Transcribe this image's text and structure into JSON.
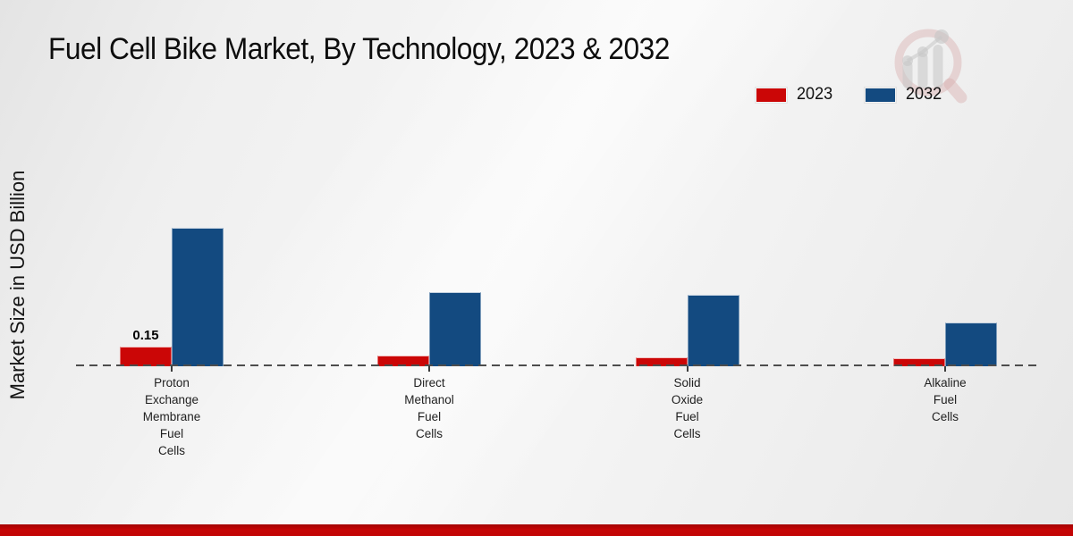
{
  "page": {
    "title": "Fuel Cell Bike Market, By Technology, 2023 & 2032",
    "ylabel": "Market Size in USD Billion"
  },
  "watermark": {
    "icon": "magnifier-bar-chart-logo"
  },
  "colors": {
    "series_2023": "#cb0606",
    "series_2032": "#134a80",
    "baseline": "#4d4d4d",
    "footer_strip": "#c20404",
    "background": "#efefef"
  },
  "chart_data": {
    "type": "bar",
    "title": "Fuel Cell Bike Market, By Technology, 2023 & 2032",
    "ylabel": "Market Size in USD Billion",
    "xlabel": "",
    "categories": [
      "Proton Exchange Membrane Fuel Cells",
      "Direct Methanol Fuel Cells",
      "Solid Oxide Fuel Cells",
      "Alkaline Fuel Cells"
    ],
    "series": [
      {
        "name": "2023",
        "color": "#cb0606",
        "values": [
          0.15,
          0.08,
          0.07,
          0.06
        ],
        "data_labels": [
          "0.15",
          null,
          null,
          null
        ]
      },
      {
        "name": "2032",
        "color": "#134a80",
        "values": [
          1.04,
          0.56,
          0.54,
          0.33
        ],
        "data_labels": [
          null,
          null,
          null,
          null
        ]
      }
    ],
    "ylim": [
      0,
      1.1
    ],
    "grid": false,
    "baseline_style": "dashed",
    "legend_position": "top-right",
    "units": "USD Billion"
  }
}
